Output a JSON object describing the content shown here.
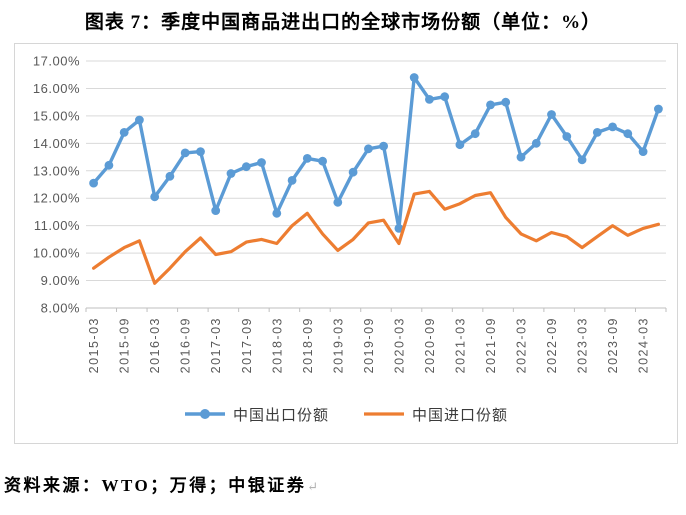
{
  "title": "图表 7：季度中国商品进出口的全球市场份额（单位：%）",
  "source_note": "资料来源：WTO；万得；中银证券",
  "paragraph_mark": "↵",
  "colors": {
    "export_series": "#5B9BD5",
    "import_series": "#ED7D31",
    "gridline": "#D9D9D9",
    "axis_line": "#BFBFBF",
    "axis_text": "#595959",
    "title_text": "#000000",
    "legend_text": "#3B3B3B",
    "frame_border": "#D6D6D6"
  },
  "legend": {
    "items": [
      {
        "label": "中国出口份额",
        "color": "#5B9BD5",
        "marker": "circle"
      },
      {
        "label": "中国进口份额",
        "color": "#ED7D31",
        "marker": "none"
      }
    ],
    "position": "bottom"
  },
  "chart_data": {
    "type": "line",
    "title": "图表 7：季度中国商品进出口的全球市场份额（单位：%）",
    "xlabel": "",
    "ylabel": "",
    "ylim": [
      8,
      17
    ],
    "y_tick_step": 1,
    "y_tick_format": "0.00%",
    "y_tick_labels": [
      "17.00%",
      "16.00%",
      "15.00%",
      "14.00%",
      "13.00%",
      "12.00%",
      "11.00%",
      "10.00%",
      "9.00%",
      "8.00%"
    ],
    "grid": "horizontal",
    "legend_position": "bottom",
    "x": [
      "2015-03",
      "2015-06",
      "2015-09",
      "2015-12",
      "2016-03",
      "2016-06",
      "2016-09",
      "2016-12",
      "2017-03",
      "2017-06",
      "2017-09",
      "2017-12",
      "2018-03",
      "2018-06",
      "2018-09",
      "2018-12",
      "2019-03",
      "2019-06",
      "2019-09",
      "2019-12",
      "2020-03",
      "2020-06",
      "2020-09",
      "2020-12",
      "2021-03",
      "2021-06",
      "2021-09",
      "2021-12",
      "2022-03",
      "2022-06",
      "2022-09",
      "2022-12",
      "2023-03",
      "2023-06",
      "2023-09",
      "2023-12",
      "2024-03",
      "2024-06"
    ],
    "x_ticks_shown": [
      "2015-03",
      "2015-09",
      "2016-03",
      "2016-09",
      "2017-03",
      "2017-09",
      "2018-03",
      "2018-09",
      "2019-03",
      "2019-09",
      "2020-03",
      "2020-09",
      "2021-03",
      "2021-09",
      "2022-03",
      "2022-09",
      "2023-03",
      "2023-09",
      "2024-03"
    ],
    "x_label_rotation": -90,
    "series": [
      {
        "name": "中国出口份额",
        "color": "#5B9BD5",
        "marker": "circle",
        "values": [
          12.55,
          13.2,
          14.4,
          14.85,
          12.05,
          12.8,
          13.65,
          13.7,
          11.55,
          12.9,
          13.15,
          13.3,
          11.45,
          12.65,
          13.45,
          13.35,
          11.85,
          12.95,
          13.8,
          13.9,
          10.9,
          16.4,
          15.6,
          15.7,
          13.95,
          14.35,
          15.4,
          15.5,
          13.5,
          14.0,
          15.05,
          14.25,
          13.4,
          14.4,
          14.6,
          14.35,
          13.7,
          15.25
        ]
      },
      {
        "name": "中国进口份额",
        "color": "#ED7D31",
        "marker": "none",
        "values": [
          9.45,
          9.85,
          10.2,
          10.45,
          8.9,
          9.45,
          10.05,
          10.55,
          9.95,
          10.05,
          10.4,
          10.5,
          10.35,
          11.0,
          11.45,
          10.7,
          10.1,
          10.5,
          11.1,
          11.2,
          10.35,
          12.15,
          12.25,
          11.6,
          11.8,
          12.1,
          12.2,
          11.3,
          10.7,
          10.45,
          10.75,
          10.6,
          10.2,
          10.6,
          11.0,
          10.65,
          10.9,
          11.05
        ]
      }
    ]
  }
}
